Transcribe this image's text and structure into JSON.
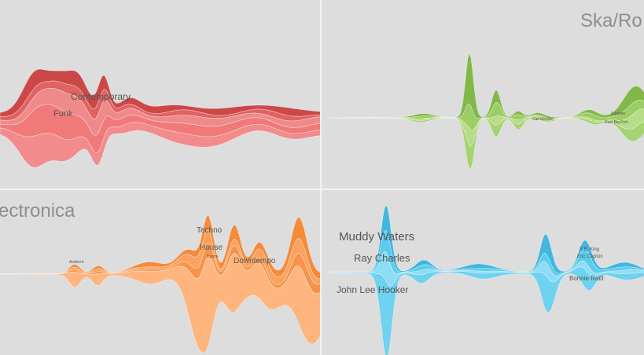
{
  "chart_data": [
    {
      "type": "area",
      "subtype": "streamgraph",
      "genre_title": "",
      "labels": [
        "Contemporary",
        "Funk"
      ],
      "colors": [
        "#e06262",
        "#ef8a8a",
        "#cc4848"
      ]
    },
    {
      "type": "area",
      "subtype": "streamgraph",
      "genre_title": "Ska/Ro",
      "labels": [
        "Cali Mambo",
        "Sublime",
        "Reel Big Fish"
      ],
      "colors": [
        "#9ccc64",
        "#b7dc88",
        "#82b84a"
      ]
    },
    {
      "type": "area",
      "subtype": "streamgraph",
      "genre_title": "ectronica",
      "labels": [
        "Techno",
        "House",
        "Downtempo",
        "Ambient",
        "Trance"
      ],
      "colors": [
        "#fba25e",
        "#f58a3a",
        "#ffb67e"
      ]
    },
    {
      "type": "area",
      "subtype": "streamgraph",
      "genre_title": "",
      "labels": [
        "Muddy Waters",
        "Ray Charles",
        "John Lee Hooker",
        "Bonnie Raitt",
        "Eric Clapton",
        "B.B. King"
      ],
      "colors": [
        "#5ccbee",
        "#8edcf5",
        "#3fb7e0"
      ]
    }
  ]
}
